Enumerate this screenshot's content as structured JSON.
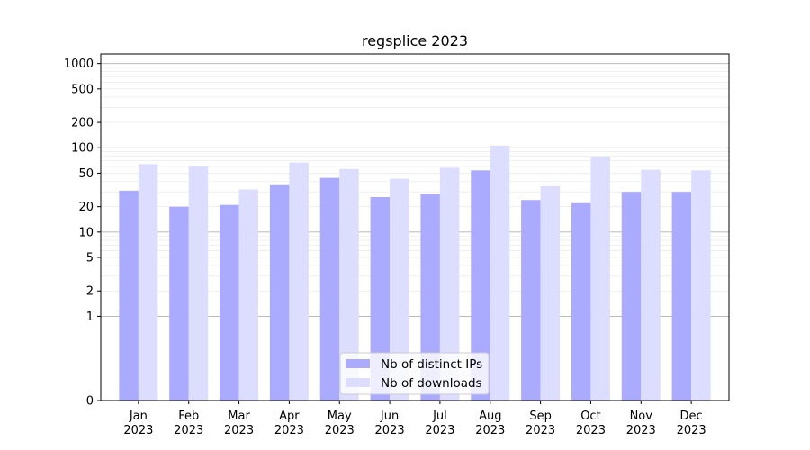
{
  "chart_data": {
    "type": "bar",
    "title": "regsplice 2023",
    "xlabel": "",
    "ylabel": "",
    "y_scale": "symlog",
    "ylim": [
      0,
      1300
    ],
    "y_ticks": [
      0,
      1,
      2,
      5,
      10,
      20,
      50,
      100,
      200,
      500,
      1000
    ],
    "grid": true,
    "legend_position": "lower center",
    "categories": [
      [
        "Jan",
        "2023"
      ],
      [
        "Feb",
        "2023"
      ],
      [
        "Mar",
        "2023"
      ],
      [
        "Apr",
        "2023"
      ],
      [
        "May",
        "2023"
      ],
      [
        "Jun",
        "2023"
      ],
      [
        "Jul",
        "2023"
      ],
      [
        "Aug",
        "2023"
      ],
      [
        "Sep",
        "2023"
      ],
      [
        "Oct",
        "2023"
      ],
      [
        "Nov",
        "2023"
      ],
      [
        "Dec",
        "2023"
      ]
    ],
    "series": [
      {
        "name": "Nb of distinct IPs",
        "color": "#aaaaff",
        "values": [
          31,
          20,
          21,
          36,
          44,
          26,
          28,
          54,
          24,
          22,
          30,
          30
        ]
      },
      {
        "name": "Nb of downloads",
        "color": "#ddddff",
        "values": [
          64,
          61,
          32,
          67,
          56,
          43,
          58,
          106,
          35,
          78,
          55,
          54
        ]
      }
    ]
  }
}
